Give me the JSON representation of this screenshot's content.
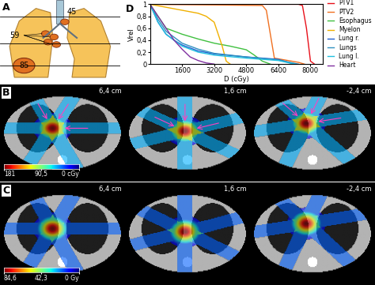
{
  "chart_data": {
    "type": "line",
    "panel_label": "D",
    "x_label": "D (cGy)",
    "y_label": "Vrel",
    "xlim": [
      0,
      8600
    ],
    "ylim": [
      0,
      1
    ],
    "xticks": [
      1600,
      3200,
      4800,
      6400,
      8000
    ],
    "yticks": [
      0,
      {
        "value": 0.2,
        "label": "0,2"
      },
      {
        "value": 0.4,
        "label": "0,4"
      },
      {
        "value": 0.6,
        "label": "0,6"
      },
      {
        "value": 0.8,
        "label": "0,8"
      },
      1
    ],
    "grid": false,
    "legend": "right",
    "series": [
      {
        "name": "PTV1",
        "color": "#e8101a",
        "x": [
          0,
          7400,
          7600,
          7800,
          8000,
          8200
        ],
        "values": [
          1,
          1,
          0.98,
          0.6,
          0.05,
          0
        ]
      },
      {
        "name": "PTV2",
        "color": "#f07020",
        "x": [
          0,
          5600,
          5800,
          6000,
          6200,
          7400,
          7700
        ],
        "values": [
          1,
          0.98,
          0.9,
          0.5,
          0.1,
          0.03,
          0
        ]
      },
      {
        "name": "Esophagus",
        "color": "#40c040",
        "x": [
          0,
          400,
          800,
          1600,
          2400,
          3200,
          4000,
          4800,
          5200,
          5600,
          6000
        ],
        "values": [
          1,
          0.8,
          0.6,
          0.5,
          0.42,
          0.35,
          0.3,
          0.24,
          0.15,
          0.05,
          0
        ]
      },
      {
        "name": "Myelon",
        "color": "#f0b000",
        "x": [
          0,
          800,
          1600,
          2400,
          2800,
          3200,
          3600,
          3800,
          4000
        ],
        "values": [
          1,
          0.95,
          0.9,
          0.85,
          0.8,
          0.7,
          0.3,
          0.05,
          0
        ]
      },
      {
        "name": "Lung r.",
        "color": "#2060d0",
        "x": [
          0,
          400,
          800,
          1200,
          1600,
          2400,
          3200,
          4800,
          6400,
          7200
        ],
        "values": [
          1,
          0.7,
          0.5,
          0.4,
          0.32,
          0.22,
          0.17,
          0.12,
          0.08,
          0
        ]
      },
      {
        "name": "Lungs",
        "color": "#3090c0",
        "x": [
          0,
          400,
          800,
          1600,
          2400,
          3200,
          4800,
          6400,
          7400
        ],
        "values": [
          1,
          0.75,
          0.55,
          0.35,
          0.25,
          0.18,
          0.12,
          0.07,
          0
        ]
      },
      {
        "name": "Lung l.",
        "color": "#20c0e0",
        "x": [
          0,
          400,
          800,
          1600,
          2400,
          3200,
          4800,
          6400,
          7200
        ],
        "values": [
          1,
          0.7,
          0.5,
          0.3,
          0.2,
          0.15,
          0.1,
          0.06,
          0
        ]
      },
      {
        "name": "Heart",
        "color": "#8030a0",
        "x": [
          0,
          400,
          800,
          1200,
          1600,
          2000,
          2400,
          2800,
          3200
        ],
        "values": [
          1,
          0.8,
          0.6,
          0.4,
          0.25,
          0.12,
          0.06,
          0.02,
          0
        ]
      }
    ]
  },
  "panels": {
    "A": {
      "label": "A",
      "lesions": [
        45,
        59,
        85
      ]
    },
    "B": {
      "label": "B",
      "slices": [
        "6,4 cm",
        "1,6 cm",
        "-2,4 cm"
      ],
      "colorbar": {
        "range": [
          181,
          0
        ],
        "ticks": [
          181,
          {
            "value": 90.5,
            "label": "90,5"
          },
          {
            "value": 0,
            "label": "0 cGy"
          }
        ]
      }
    },
    "C": {
      "label": "C",
      "slices": [
        "6,4 cm",
        "1,6 cm",
        "-2,4 cm"
      ],
      "colorbar": {
        "range": [
          84.6,
          0
        ],
        "ticks": [
          {
            "value": 84.6,
            "label": "84,6"
          },
          {
            "value": 42.3,
            "label": "42,3"
          },
          {
            "value": 0,
            "label": "0 Gy"
          }
        ]
      }
    }
  }
}
